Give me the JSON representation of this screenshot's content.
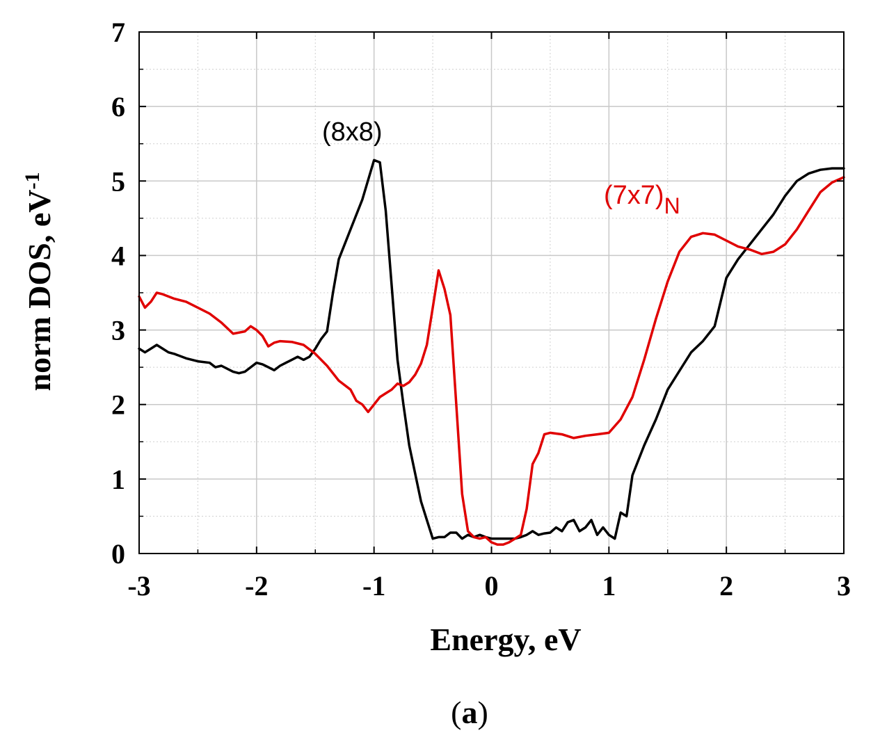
{
  "chart_data": {
    "type": "line",
    "panel_label": "a",
    "xlabel": "Energy, eV",
    "ylabel_main": "norm DOS, eV",
    "ylabel_sup": "-1",
    "xlim": [
      -3,
      3
    ],
    "ylim": [
      0,
      7
    ],
    "x_ticks": [
      "-3",
      "-2",
      "-1",
      "0",
      "1",
      "2",
      "3"
    ],
    "y_ticks": [
      "0",
      "1",
      "2",
      "3",
      "4",
      "5",
      "6",
      "7"
    ],
    "grid": true,
    "series": [
      {
        "name": "(8x8)",
        "label_main": "(8x8)",
        "label_sub": "",
        "color": "#000000",
        "points": [
          [
            -3.0,
            2.75
          ],
          [
            -2.95,
            2.7
          ],
          [
            -2.9,
            2.75
          ],
          [
            -2.85,
            2.8
          ],
          [
            -2.8,
            2.75
          ],
          [
            -2.75,
            2.7
          ],
          [
            -2.7,
            2.68
          ],
          [
            -2.6,
            2.62
          ],
          [
            -2.5,
            2.58
          ],
          [
            -2.4,
            2.56
          ],
          [
            -2.35,
            2.5
          ],
          [
            -2.3,
            2.52
          ],
          [
            -2.2,
            2.44
          ],
          [
            -2.15,
            2.42
          ],
          [
            -2.1,
            2.44
          ],
          [
            -2.05,
            2.5
          ],
          [
            -2.0,
            2.56
          ],
          [
            -1.95,
            2.54
          ],
          [
            -1.9,
            2.5
          ],
          [
            -1.85,
            2.46
          ],
          [
            -1.8,
            2.52
          ],
          [
            -1.75,
            2.56
          ],
          [
            -1.7,
            2.6
          ],
          [
            -1.65,
            2.64
          ],
          [
            -1.6,
            2.6
          ],
          [
            -1.55,
            2.64
          ],
          [
            -1.5,
            2.75
          ],
          [
            -1.45,
            2.88
          ],
          [
            -1.4,
            2.98
          ],
          [
            -1.35,
            3.5
          ],
          [
            -1.3,
            3.95
          ],
          [
            -1.2,
            4.35
          ],
          [
            -1.1,
            4.75
          ],
          [
            -1.0,
            5.28
          ],
          [
            -0.95,
            5.25
          ],
          [
            -0.9,
            4.6
          ],
          [
            -0.85,
            3.6
          ],
          [
            -0.8,
            2.6
          ],
          [
            -0.75,
            2.0
          ],
          [
            -0.7,
            1.45
          ],
          [
            -0.6,
            0.7
          ],
          [
            -0.55,
            0.45
          ],
          [
            -0.5,
            0.2
          ],
          [
            -0.45,
            0.22
          ],
          [
            -0.4,
            0.22
          ],
          [
            -0.35,
            0.28
          ],
          [
            -0.3,
            0.28
          ],
          [
            -0.25,
            0.2
          ],
          [
            -0.2,
            0.25
          ],
          [
            -0.15,
            0.22
          ],
          [
            -0.1,
            0.25
          ],
          [
            -0.05,
            0.22
          ],
          [
            0.0,
            0.2
          ],
          [
            0.1,
            0.2
          ],
          [
            0.2,
            0.2
          ],
          [
            0.25,
            0.22
          ],
          [
            0.3,
            0.25
          ],
          [
            0.35,
            0.3
          ],
          [
            0.4,
            0.25
          ],
          [
            0.45,
            0.27
          ],
          [
            0.5,
            0.28
          ],
          [
            0.55,
            0.35
          ],
          [
            0.6,
            0.3
          ],
          [
            0.65,
            0.42
          ],
          [
            0.7,
            0.45
          ],
          [
            0.75,
            0.3
          ],
          [
            0.8,
            0.35
          ],
          [
            0.85,
            0.45
          ],
          [
            0.9,
            0.25
          ],
          [
            0.95,
            0.35
          ],
          [
            1.0,
            0.25
          ],
          [
            1.05,
            0.2
          ],
          [
            1.1,
            0.55
          ],
          [
            1.15,
            0.5
          ],
          [
            1.2,
            1.05
          ],
          [
            1.3,
            1.45
          ],
          [
            1.4,
            1.8
          ],
          [
            1.5,
            2.2
          ],
          [
            1.6,
            2.45
          ],
          [
            1.7,
            2.7
          ],
          [
            1.8,
            2.85
          ],
          [
            1.9,
            3.05
          ],
          [
            2.0,
            3.7
          ],
          [
            2.1,
            3.95
          ],
          [
            2.2,
            4.15
          ],
          [
            2.3,
            4.35
          ],
          [
            2.4,
            4.55
          ],
          [
            2.5,
            4.8
          ],
          [
            2.6,
            5.0
          ],
          [
            2.7,
            5.1
          ],
          [
            2.8,
            5.15
          ],
          [
            2.9,
            5.17
          ],
          [
            3.0,
            5.17
          ]
        ]
      },
      {
        "name": "(7x7)N",
        "label_main": "(7x7)",
        "label_sub": "N",
        "color": "#e00000",
        "points": [
          [
            -3.0,
            3.45
          ],
          [
            -2.95,
            3.3
          ],
          [
            -2.9,
            3.38
          ],
          [
            -2.85,
            3.5
          ],
          [
            -2.8,
            3.48
          ],
          [
            -2.75,
            3.45
          ],
          [
            -2.7,
            3.42
          ],
          [
            -2.6,
            3.38
          ],
          [
            -2.5,
            3.3
          ],
          [
            -2.4,
            3.22
          ],
          [
            -2.3,
            3.1
          ],
          [
            -2.2,
            2.95
          ],
          [
            -2.1,
            2.98
          ],
          [
            -2.05,
            3.05
          ],
          [
            -2.0,
            3.0
          ],
          [
            -1.95,
            2.92
          ],
          [
            -1.9,
            2.78
          ],
          [
            -1.85,
            2.83
          ],
          [
            -1.8,
            2.85
          ],
          [
            -1.7,
            2.84
          ],
          [
            -1.6,
            2.8
          ],
          [
            -1.5,
            2.68
          ],
          [
            -1.4,
            2.52
          ],
          [
            -1.3,
            2.32
          ],
          [
            -1.2,
            2.2
          ],
          [
            -1.15,
            2.05
          ],
          [
            -1.1,
            2.0
          ],
          [
            -1.05,
            1.9
          ],
          [
            -1.0,
            2.0
          ],
          [
            -0.95,
            2.1
          ],
          [
            -0.9,
            2.15
          ],
          [
            -0.85,
            2.2
          ],
          [
            -0.8,
            2.28
          ],
          [
            -0.75,
            2.25
          ],
          [
            -0.7,
            2.3
          ],
          [
            -0.65,
            2.4
          ],
          [
            -0.6,
            2.55
          ],
          [
            -0.55,
            2.8
          ],
          [
            -0.5,
            3.3
          ],
          [
            -0.45,
            3.8
          ],
          [
            -0.4,
            3.55
          ],
          [
            -0.35,
            3.2
          ],
          [
            -0.3,
            2.0
          ],
          [
            -0.25,
            0.8
          ],
          [
            -0.2,
            0.3
          ],
          [
            -0.15,
            0.22
          ],
          [
            -0.1,
            0.2
          ],
          [
            -0.05,
            0.22
          ],
          [
            0.0,
            0.15
          ],
          [
            0.05,
            0.12
          ],
          [
            0.1,
            0.12
          ],
          [
            0.15,
            0.15
          ],
          [
            0.2,
            0.2
          ],
          [
            0.25,
            0.25
          ],
          [
            0.3,
            0.6
          ],
          [
            0.35,
            1.2
          ],
          [
            0.4,
            1.35
          ],
          [
            0.45,
            1.6
          ],
          [
            0.5,
            1.62
          ],
          [
            0.6,
            1.6
          ],
          [
            0.7,
            1.55
          ],
          [
            0.8,
            1.58
          ],
          [
            0.9,
            1.6
          ],
          [
            1.0,
            1.62
          ],
          [
            1.1,
            1.8
          ],
          [
            1.2,
            2.1
          ],
          [
            1.3,
            2.6
          ],
          [
            1.4,
            3.15
          ],
          [
            1.5,
            3.65
          ],
          [
            1.6,
            4.05
          ],
          [
            1.7,
            4.25
          ],
          [
            1.8,
            4.3
          ],
          [
            1.9,
            4.28
          ],
          [
            2.0,
            4.2
          ],
          [
            2.1,
            4.12
          ],
          [
            2.2,
            4.08
          ],
          [
            2.3,
            4.02
          ],
          [
            2.4,
            4.05
          ],
          [
            2.5,
            4.15
          ],
          [
            2.6,
            4.35
          ],
          [
            2.7,
            4.6
          ],
          [
            2.8,
            4.85
          ],
          [
            2.9,
            4.98
          ],
          [
            3.0,
            5.05
          ]
        ]
      }
    ]
  }
}
